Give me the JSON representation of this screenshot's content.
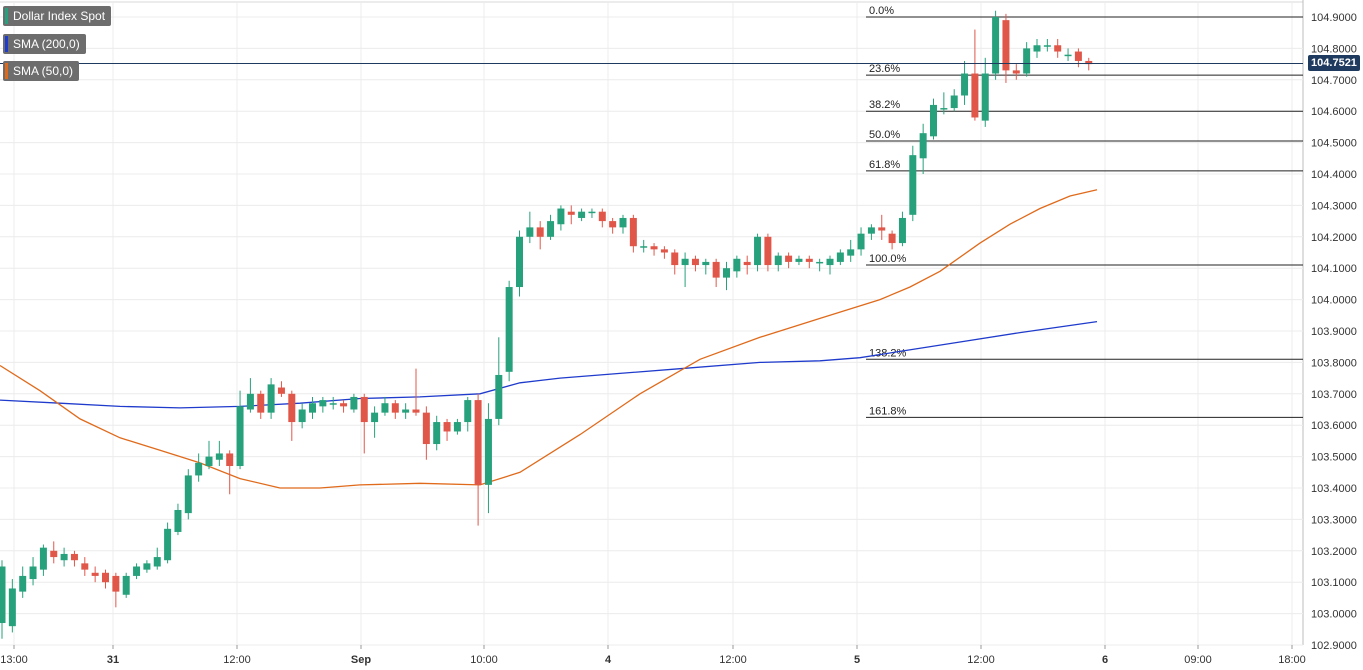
{
  "legend": [
    {
      "label": "Dollar Index Spot",
      "color": "#26a17b"
    },
    {
      "label": "SMA (200,0)",
      "color": "#1f3bcc"
    },
    {
      "label": "SMA (50,0)",
      "color": "#e06a1b"
    }
  ],
  "last_price": "104.7521",
  "chart_data": {
    "type": "candlestick",
    "instrument": "Dollar Index Spot",
    "ylim": [
      102.9,
      104.95
    ],
    "grid": true,
    "y_ticks": [
      "102.9000",
      "103.0000",
      "103.1000",
      "103.2000",
      "103.3000",
      "103.4000",
      "103.5000",
      "103.6000",
      "103.7000",
      "103.8000",
      "103.9000",
      "104.0000",
      "104.1000",
      "104.2000",
      "104.3000",
      "104.4000",
      "104.5000",
      "104.6000",
      "104.7000",
      "104.8000",
      "104.9000"
    ],
    "x_ticks": [
      "13:00",
      "31",
      "12:00",
      "Sep",
      "10:00",
      "4",
      "12:00",
      "5",
      "12:00",
      "6",
      "09:00",
      "18:00"
    ],
    "colors": {
      "up": "#26a17b",
      "down": "#e0574a",
      "sma200": "#1f3bcc",
      "sma50": "#e06a1b",
      "fib": "#222222",
      "price_line": "#1e3a5f"
    },
    "fibonacci": [
      {
        "label": "0.0%",
        "value": 104.9
      },
      {
        "label": "23.6%",
        "value": 104.715
      },
      {
        "label": "38.2%",
        "value": 104.6
      },
      {
        "label": "50.0%",
        "value": 104.505
      },
      {
        "label": "61.8%",
        "value": 104.41
      },
      {
        "label": "100.0%",
        "value": 104.11
      },
      {
        "label": "138.2%",
        "value": 103.81
      },
      {
        "label": "161.8%",
        "value": 103.625
      }
    ],
    "candles": [
      [
        102.97,
        103.15,
        103.17,
        102.92
      ],
      [
        102.96,
        103.08,
        103.11,
        102.94
      ],
      [
        103.07,
        103.12,
        103.15,
        103.05
      ],
      [
        103.11,
        103.15,
        103.18,
        103.09
      ],
      [
        103.14,
        103.21,
        103.22,
        103.12
      ],
      [
        103.2,
        103.18,
        103.23,
        103.16
      ],
      [
        103.17,
        103.19,
        103.21,
        103.15
      ],
      [
        103.19,
        103.17,
        103.2,
        103.15
      ],
      [
        103.16,
        103.14,
        103.18,
        103.12
      ],
      [
        103.13,
        103.12,
        103.15,
        103.1
      ],
      [
        103.13,
        103.1,
        103.14,
        103.08
      ],
      [
        103.12,
        103.07,
        103.13,
        103.02
      ],
      [
        103.06,
        103.12,
        103.13,
        103.05
      ],
      [
        103.12,
        103.15,
        103.16,
        103.11
      ],
      [
        103.14,
        103.16,
        103.17,
        103.13
      ],
      [
        103.15,
        103.18,
        103.21,
        103.14
      ],
      [
        103.17,
        103.27,
        103.29,
        103.16
      ],
      [
        103.26,
        103.33,
        103.35,
        103.25
      ],
      [
        103.32,
        103.44,
        103.46,
        103.3
      ],
      [
        103.44,
        103.48,
        103.51,
        103.42
      ],
      [
        103.47,
        103.5,
        103.55,
        103.46
      ],
      [
        103.49,
        103.51,
        103.55,
        103.47
      ],
      [
        103.51,
        103.47,
        103.52,
        103.38
      ],
      [
        103.47,
        103.66,
        103.71,
        103.46
      ],
      [
        103.65,
        103.7,
        103.75,
        103.64
      ],
      [
        103.7,
        103.64,
        103.71,
        103.62
      ],
      [
        103.64,
        103.73,
        103.75,
        103.62
      ],
      [
        103.72,
        103.7,
        103.74,
        103.69
      ],
      [
        103.7,
        103.61,
        103.71,
        103.55
      ],
      [
        103.61,
        103.65,
        103.67,
        103.59
      ],
      [
        103.64,
        103.67,
        103.69,
        103.62
      ],
      [
        103.66,
        103.68,
        103.69,
        103.64
      ],
      [
        103.67,
        103.67,
        103.69,
        103.65
      ],
      [
        103.67,
        103.66,
        103.68,
        103.64
      ],
      [
        103.65,
        103.69,
        103.7,
        103.64
      ],
      [
        103.69,
        103.61,
        103.7,
        103.51
      ],
      [
        103.61,
        103.64,
        103.66,
        103.56
      ],
      [
        103.64,
        103.67,
        103.69,
        103.63
      ],
      [
        103.67,
        103.64,
        103.68,
        103.62
      ],
      [
        103.64,
        103.65,
        103.67,
        103.62
      ],
      [
        103.65,
        103.64,
        103.78,
        103.63
      ],
      [
        103.64,
        103.54,
        103.66,
        103.49
      ],
      [
        103.54,
        103.61,
        103.63,
        103.52
      ],
      [
        103.61,
        103.58,
        103.62,
        103.55
      ],
      [
        103.58,
        103.61,
        103.62,
        103.57
      ],
      [
        103.61,
        103.68,
        103.69,
        103.58
      ],
      [
        103.68,
        103.41,
        103.7,
        103.28
      ],
      [
        103.41,
        103.62,
        103.67,
        103.32
      ],
      [
        103.62,
        103.76,
        103.88,
        103.6
      ],
      [
        103.77,
        104.04,
        104.06,
        103.74
      ],
      [
        104.04,
        104.2,
        104.22,
        104.01
      ],
      [
        104.2,
        104.23,
        104.28,
        104.18
      ],
      [
        104.23,
        104.2,
        104.25,
        104.16
      ],
      [
        104.2,
        104.25,
        104.27,
        104.19
      ],
      [
        104.24,
        104.29,
        104.3,
        104.22
      ],
      [
        104.28,
        104.27,
        104.3,
        104.24
      ],
      [
        104.26,
        104.28,
        104.29,
        104.25
      ],
      [
        104.28,
        104.28,
        104.29,
        104.26
      ],
      [
        104.28,
        104.25,
        104.29,
        104.23
      ],
      [
        104.25,
        104.23,
        104.26,
        104.21
      ],
      [
        104.23,
        104.26,
        104.27,
        104.21
      ],
      [
        104.26,
        104.17,
        104.27,
        104.15
      ],
      [
        104.17,
        104.17,
        104.19,
        104.15
      ],
      [
        104.17,
        104.16,
        104.18,
        104.14
      ],
      [
        104.16,
        104.15,
        104.17,
        104.13
      ],
      [
        104.15,
        104.11,
        104.16,
        104.08
      ],
      [
        104.11,
        104.13,
        104.15,
        104.04
      ],
      [
        104.13,
        104.11,
        104.14,
        104.09
      ],
      [
        104.11,
        104.12,
        104.13,
        104.08
      ],
      [
        104.12,
        104.07,
        104.13,
        104.04
      ],
      [
        104.07,
        104.1,
        104.12,
        104.03
      ],
      [
        104.09,
        104.13,
        104.14,
        104.07
      ],
      [
        104.12,
        104.11,
        104.14,
        104.08
      ],
      [
        104.11,
        104.2,
        104.21,
        104.09
      ],
      [
        104.2,
        104.11,
        104.21,
        104.09
      ],
      [
        104.11,
        104.14,
        104.15,
        104.09
      ],
      [
        104.14,
        104.12,
        104.15,
        104.1
      ],
      [
        104.12,
        104.13,
        104.14,
        104.11
      ],
      [
        104.13,
        104.12,
        104.14,
        104.1
      ],
      [
        104.12,
        104.12,
        104.13,
        104.09
      ],
      [
        104.11,
        104.13,
        104.14,
        104.08
      ],
      [
        104.12,
        104.15,
        104.16,
        104.11
      ],
      [
        104.14,
        104.16,
        104.19,
        104.12
      ],
      [
        104.16,
        104.21,
        104.23,
        104.14
      ],
      [
        104.21,
        104.23,
        104.24,
        104.19
      ],
      [
        104.23,
        104.22,
        104.27,
        104.19
      ],
      [
        104.21,
        104.18,
        104.22,
        104.16
      ],
      [
        104.18,
        104.26,
        104.28,
        104.17
      ],
      [
        104.27,
        104.46,
        104.49,
        104.25
      ],
      [
        104.45,
        104.53,
        104.56,
        104.4
      ],
      [
        104.52,
        104.62,
        104.64,
        104.51
      ],
      [
        104.61,
        104.61,
        104.66,
        104.59
      ],
      [
        104.61,
        104.65,
        104.67,
        104.6
      ],
      [
        104.65,
        104.72,
        104.76,
        104.62
      ],
      [
        104.72,
        104.58,
        104.86,
        104.57
      ],
      [
        104.57,
        104.72,
        104.77,
        104.55
      ],
      [
        104.72,
        104.9,
        104.92,
        104.7
      ],
      [
        104.89,
        104.73,
        104.91,
        104.69
      ],
      [
        104.73,
        104.72,
        104.75,
        104.7
      ],
      [
        104.72,
        104.8,
        104.82,
        104.71
      ],
      [
        104.79,
        104.81,
        104.83,
        104.77
      ],
      [
        104.81,
        104.81,
        104.83,
        104.79
      ],
      [
        104.81,
        104.79,
        104.83,
        104.77
      ],
      [
        104.78,
        104.78,
        104.8,
        104.76
      ],
      [
        104.79,
        104.76,
        104.8,
        104.74
      ],
      [
        104.76,
        104.75,
        104.77,
        104.73
      ]
    ],
    "sma200": [
      [
        0,
        103.68
      ],
      [
        60,
        103.67
      ],
      [
        120,
        103.66
      ],
      [
        180,
        103.655
      ],
      [
        240,
        103.66
      ],
      [
        300,
        103.67
      ],
      [
        360,
        103.685
      ],
      [
        420,
        103.69
      ],
      [
        480,
        103.7
      ],
      [
        520,
        103.735
      ],
      [
        560,
        103.75
      ],
      [
        620,
        103.765
      ],
      [
        680,
        103.78
      ],
      [
        760,
        103.8
      ],
      [
        820,
        103.805
      ],
      [
        860,
        103.815
      ],
      [
        900,
        103.835
      ],
      [
        960,
        103.865
      ],
      [
        1020,
        103.895
      ],
      [
        1097,
        103.93
      ]
    ],
    "sma50": [
      [
        0,
        103.79
      ],
      [
        40,
        103.71
      ],
      [
        80,
        103.62
      ],
      [
        120,
        103.56
      ],
      [
        160,
        103.52
      ],
      [
        200,
        103.48
      ],
      [
        240,
        103.43
      ],
      [
        280,
        103.4
      ],
      [
        320,
        103.4
      ],
      [
        360,
        103.41
      ],
      [
        420,
        103.415
      ],
      [
        480,
        103.41
      ],
      [
        520,
        103.45
      ],
      [
        580,
        103.57
      ],
      [
        640,
        103.7
      ],
      [
        700,
        103.81
      ],
      [
        760,
        103.88
      ],
      [
        820,
        103.94
      ],
      [
        880,
        104.0
      ],
      [
        910,
        104.04
      ],
      [
        940,
        104.09
      ],
      [
        980,
        104.18
      ],
      [
        1010,
        104.24
      ],
      [
        1040,
        104.29
      ],
      [
        1070,
        104.33
      ],
      [
        1097,
        104.35
      ]
    ]
  }
}
